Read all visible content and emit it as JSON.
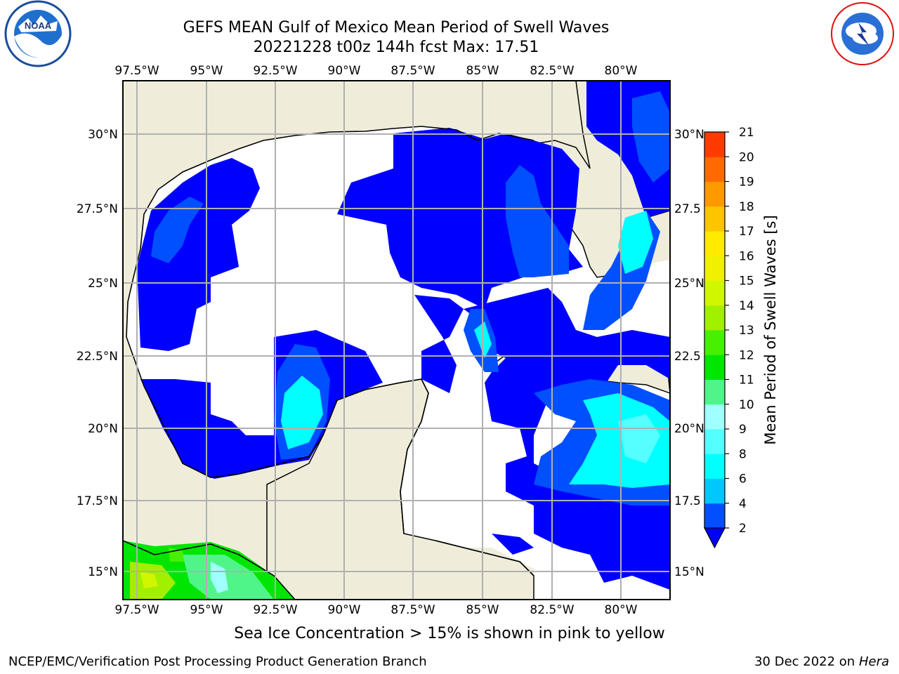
{
  "title": {
    "line1": "GEFS MEAN Gulf of Mexico Mean Period of Swell Waves",
    "line2": "20221228 t00z 144h fcst   Max: 17.51"
  },
  "map": {
    "lon_labels": [
      "97.5°W",
      "95°W",
      "92.5°W",
      "90°W",
      "87.5°W",
      "85°W",
      "82.5°W",
      "80°W"
    ],
    "lat_labels_left": [
      "30°N",
      "27.5°N",
      "25°N",
      "22.5°N",
      "20°N",
      "17.5°N",
      "15°N"
    ],
    "lat_labels_right": [
      "30°N",
      "27.5",
      "25°N",
      "22.5",
      "20°N",
      "17.5",
      "15°N"
    ],
    "extent": {
      "lon_min": -98.0,
      "lon_max": -78.2,
      "lat_min": 14.0,
      "lat_max": 31.8
    },
    "colors": {
      "land": "#efedda",
      "ocean_below_2s": "#ffffff",
      "grid": "#b0b0b0",
      "coast": "#000000"
    }
  },
  "colorbar": {
    "label": "Mean Period of Swell Waves [s]",
    "ticks": [
      "2",
      "4",
      "6",
      "8",
      "9",
      "10",
      "11",
      "12",
      "13",
      "14",
      "15",
      "16",
      "17",
      "18",
      "19",
      "20",
      "21"
    ],
    "colors": [
      "#0050ff",
      "#00c8ff",
      "#00ffff",
      "#55ffff",
      "#a0ffff",
      "#50f58a",
      "#00e600",
      "#46f000",
      "#a0f000",
      "#d0f700",
      "#f0f000",
      "#ffea00",
      "#ffc400",
      "#ff9900",
      "#ff6a00",
      "#ff3b00",
      "#ff0000"
    ],
    "extend_color": "#0000ff"
  },
  "footer": {
    "note": "Sea Ice Concentration > 15% is shown in pink to yellow",
    "left": "NCEP/EMC/Verification Post Processing Product Generation Branch",
    "right_date": "30 Dec 2022 on",
    "right_host": "Hera"
  },
  "logos": {
    "noaa": "noaa-logo",
    "nws": "nws-logo"
  }
}
